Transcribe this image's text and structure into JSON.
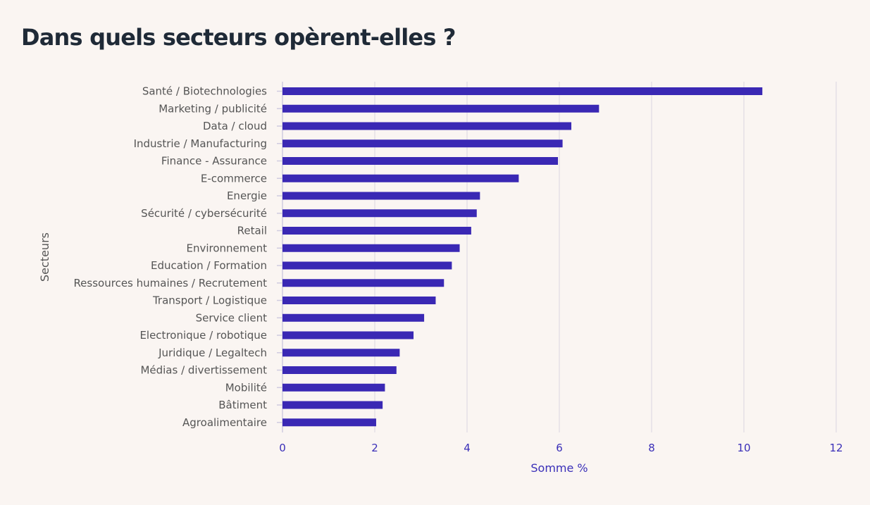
{
  "chart_data": {
    "type": "bar",
    "orientation": "horizontal",
    "title": "Dans quels secteurs opèrent-elles ?",
    "xlabel": "Somme %",
    "ylabel": "Secteurs",
    "xlim": [
      0,
      12
    ],
    "xticks": [
      "0",
      "2",
      "4",
      "6",
      "8",
      "10",
      "12"
    ],
    "grid": true,
    "bar_color": "#3a28b4",
    "categories": [
      "Santé / Biotechnologies",
      "Marketing / publicité",
      "Data / cloud",
      "Industrie / Manufacturing",
      "Finance - Assurance",
      "E-commerce",
      "Energie",
      "Sécurité / cybersécurité",
      "Retail",
      "Environnement",
      "Education / Formation",
      "Ressources humaines / Recrutement",
      "Transport / Logistique",
      "Service client",
      "Electronique / robotique",
      "Juridique / Legaltech",
      "Médias / divertissement",
      "Mobilité",
      "Bâtiment",
      "Agroalimentaire"
    ],
    "values": [
      10.4,
      6.86,
      6.26,
      6.07,
      5.97,
      5.12,
      4.28,
      4.21,
      4.09,
      3.84,
      3.67,
      3.5,
      3.32,
      3.07,
      2.84,
      2.54,
      2.47,
      2.22,
      2.17,
      2.03
    ]
  }
}
